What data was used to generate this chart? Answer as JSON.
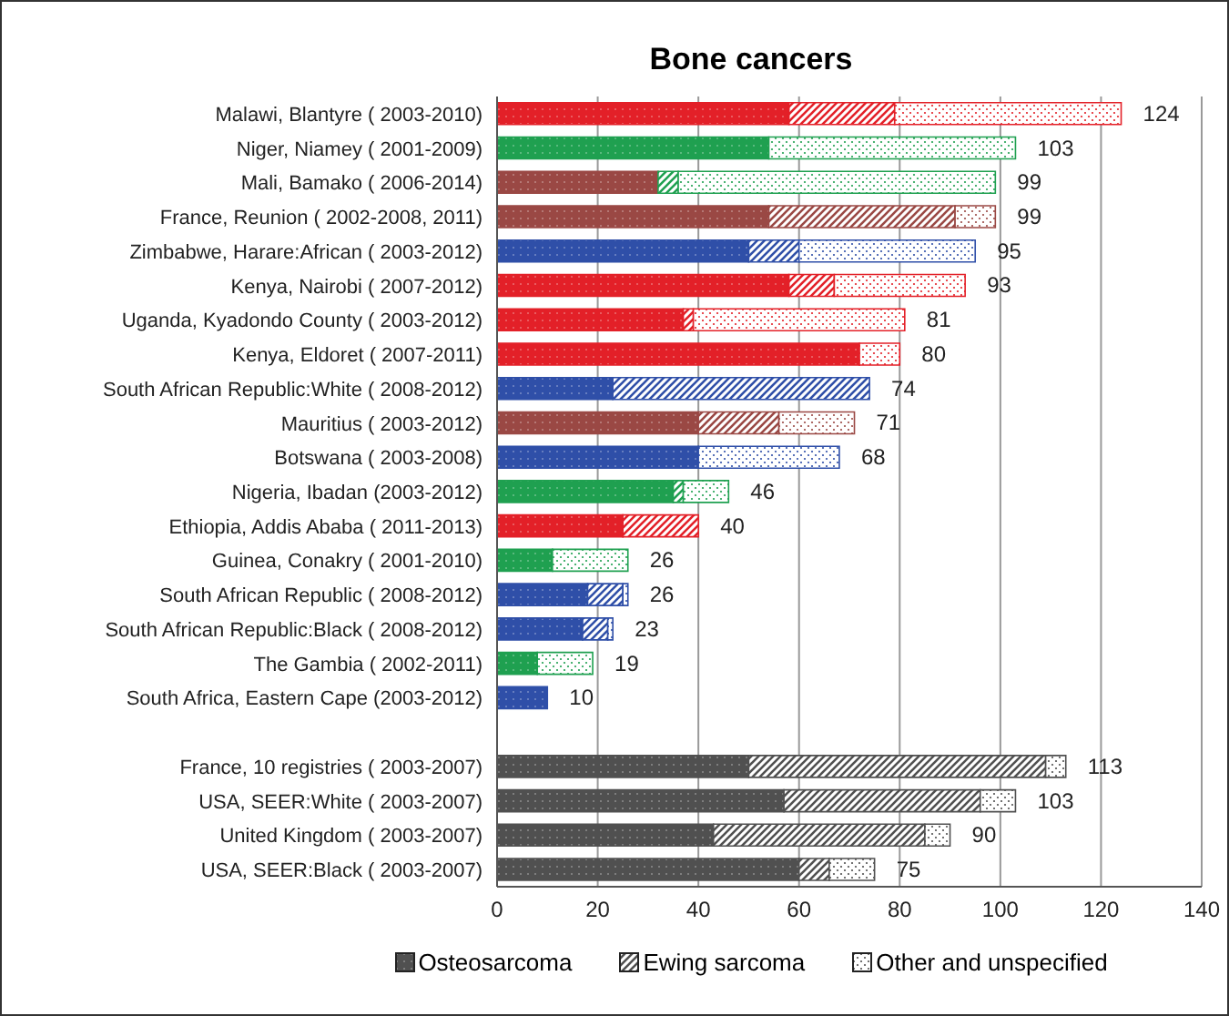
{
  "chart_data": {
    "type": "bar",
    "title": "Bone cancers",
    "orientation": "horizontal",
    "stacked": true,
    "categories": [
      "Malawi, Blantyre ( 2003-2010)",
      "Niger, Niamey ( 2001-2009)",
      "Mali, Bamako ( 2006-2014)",
      "France, Reunion ( 2002-2008,  2011)",
      "Zimbabwe, Harare:African ( 2003-2012)",
      "Kenya, Nairobi ( 2007-2012)",
      "Uganda, Kyadondo County ( 2003-2012)",
      "Kenya, Eldoret ( 2007-2011)",
      "South African Republic:White ( 2008-2012)",
      "Mauritius ( 2003-2012)",
      "Botswana ( 2003-2008)",
      "Nigeria, Ibadan (2003-2012)",
      "Ethiopia, Addis Ababa ( 2011-2013)",
      "Guinea, Conakry ( 2001-2010)",
      "South African Republic ( 2008-2012)",
      "South African Republic:Black ( 2008-2012)",
      "The Gambia ( 2002-2011)",
      "South Africa, Eastern Cape (2003-2012)",
      null,
      "France, 10 registries ( 2003-2007)",
      "USA, SEER:White ( 2003-2007)",
      "United Kingdom ( 2003-2007)",
      "USA, SEER:Black ( 2003-2007)"
    ],
    "series": [
      {
        "name": "Osteosarcoma",
        "color": "#505050",
        "values": [
          58,
          54,
          32,
          54,
          50,
          58,
          37,
          72,
          23,
          40,
          40,
          35,
          25,
          11,
          18,
          17,
          8,
          10,
          null,
          50,
          57,
          43,
          60
        ],
        "colors": [
          "#e32028",
          "#1fa050",
          "#9a4844",
          "#9a4844",
          "#2f4fa8",
          "#e32028",
          "#e32028",
          "#e32028",
          "#2f4fa8",
          "#9a4844",
          "#2f4fa8",
          "#1fa050",
          "#e32028",
          "#1fa050",
          "#2f4fa8",
          "#2f4fa8",
          "#1fa050",
          "#2f4fa8",
          "#505050",
          "#505050",
          "#505050",
          "#505050",
          "#505050"
        ]
      },
      {
        "name": "Ewing sarcoma",
        "color": "#505050",
        "values": [
          21,
          0,
          4,
          37,
          10,
          9,
          2,
          0,
          51,
          16,
          0,
          2,
          15,
          0,
          7,
          5,
          0,
          0,
          null,
          59,
          39,
          42,
          6
        ],
        "colors": [
          "#e32028",
          "#1fa050",
          "#1fa050",
          "#9a4844",
          "#2f4fa8",
          "#e32028",
          "#e32028",
          "#e32028",
          "#2f4fa8",
          "#9a4844",
          "#2f4fa8",
          "#1fa050",
          "#e32028",
          "#1fa050",
          "#2f4fa8",
          "#2f4fa8",
          "#1fa050",
          "#2f4fa8",
          "#505050",
          "#505050",
          "#505050",
          "#505050",
          "#505050"
        ]
      },
      {
        "name": "Other and unspecified",
        "color": "#505050",
        "values": [
          45,
          49,
          63,
          8,
          35,
          26,
          42,
          8,
          0,
          15,
          28,
          9,
          0,
          15,
          1,
          1,
          11,
          0,
          null,
          4,
          7,
          5,
          9
        ],
        "colors": [
          "#e32028",
          "#1fa050",
          "#1fa050",
          "#9a4844",
          "#2f4fa8",
          "#e32028",
          "#e32028",
          "#e32028",
          "#2f4fa8",
          "#9a4844",
          "#2f4fa8",
          "#1fa050",
          "#e32028",
          "#1fa050",
          "#2f4fa8",
          "#2f4fa8",
          "#1fa050",
          "#2f4fa8",
          "#505050",
          "#505050",
          "#505050",
          "#505050",
          "#505050"
        ]
      }
    ],
    "totals": [
      "124",
      "103",
      "99",
      "99",
      "95",
      "93",
      "81",
      "80",
      "74",
      "71",
      "68",
      "46",
      "40",
      "26",
      "26",
      "23",
      "19",
      "10",
      null,
      "113",
      "103",
      "90",
      "75"
    ],
    "xlim": [
      0,
      140
    ],
    "xticks": [
      0,
      20,
      40,
      60,
      80,
      100,
      120,
      140
    ],
    "grid": "x",
    "legend": "bottom"
  }
}
